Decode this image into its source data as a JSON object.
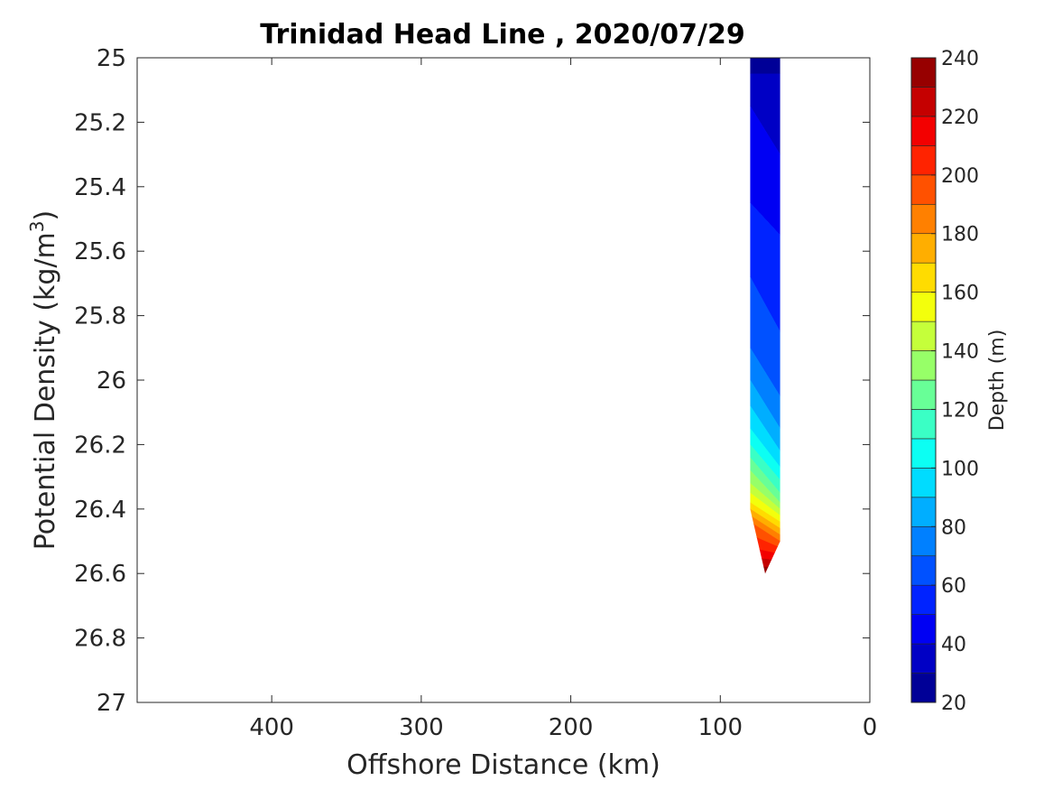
{
  "chart_data": {
    "type": "heatmap",
    "title": "Trinidad Head Line , 2020/07/29",
    "xlabel": "Offshore Distance (km)",
    "ylabel_main": "Potential Density (kg/m",
    "ylabel_sup": "3",
    "ylabel_close": ")",
    "colorbar_label": "Depth (m)",
    "xlim": [
      490,
      0
    ],
    "x_reversed": true,
    "x_ticks": [
      "400",
      "300",
      "200",
      "100",
      "0"
    ],
    "ylim": [
      25,
      27
    ],
    "y_reversed": true,
    "y_ticks": [
      "25",
      "25.2",
      "25.4",
      "25.6",
      "25.8",
      "26",
      "26.2",
      "26.4",
      "26.6",
      "26.8",
      "27"
    ],
    "colorbar_range": [
      20,
      240
    ],
    "colorbar_step": 10,
    "colorbar_ticks": [
      "20",
      "40",
      "60",
      "80",
      "100",
      "120",
      "140",
      "160",
      "180",
      "200",
      "220",
      "240"
    ],
    "colormap": "jet",
    "filled_region": {
      "x_range": [
        60,
        80
      ],
      "outline": [
        [
          80,
          25.0
        ],
        [
          60,
          25.0
        ],
        [
          60,
          26.5
        ],
        [
          70,
          26.6
        ],
        [
          80,
          26.4
        ]
      ]
    },
    "depth_contours": [
      {
        "depth": 30,
        "x": [
          60,
          80
        ],
        "y": [
          25.05,
          25.05
        ]
      },
      {
        "depth": 40,
        "x": [
          60,
          80
        ],
        "y": [
          25.3,
          25.15
        ]
      },
      {
        "depth": 50,
        "x": [
          60,
          80
        ],
        "y": [
          25.55,
          25.45
        ]
      },
      {
        "depth": 60,
        "x": [
          60,
          80
        ],
        "y": [
          25.85,
          25.68
        ]
      },
      {
        "depth": 70,
        "x": [
          60,
          80
        ],
        "y": [
          26.05,
          25.9
        ]
      },
      {
        "depth": 80,
        "x": [
          60,
          80
        ],
        "y": [
          26.15,
          26.0
        ]
      },
      {
        "depth": 90,
        "x": [
          60,
          80
        ],
        "y": [
          26.22,
          26.08
        ]
      },
      {
        "depth": 100,
        "x": [
          60,
          80
        ],
        "y": [
          26.27,
          26.15
        ]
      },
      {
        "depth": 110,
        "x": [
          60,
          80
        ],
        "y": [
          26.31,
          26.2
        ]
      },
      {
        "depth": 120,
        "x": [
          60,
          80
        ],
        "y": [
          26.35,
          26.24
        ]
      },
      {
        "depth": 130,
        "x": [
          60,
          80
        ],
        "y": [
          26.38,
          26.28
        ]
      },
      {
        "depth": 140,
        "x": [
          60,
          80
        ],
        "y": [
          26.4,
          26.32
        ]
      },
      {
        "depth": 150,
        "x": [
          60,
          80
        ],
        "y": [
          26.42,
          26.35
        ]
      },
      {
        "depth": 160,
        "x": [
          60,
          80
        ],
        "y": [
          26.44,
          26.38
        ]
      },
      {
        "depth": 170,
        "x": [
          60,
          80
        ],
        "y": [
          26.46,
          26.4
        ]
      },
      {
        "depth": 180,
        "x": [
          60,
          80
        ],
        "y": [
          26.48,
          26.42
        ]
      },
      {
        "depth": 190,
        "x": [
          60,
          80
        ],
        "y": [
          26.5,
          26.44
        ]
      },
      {
        "depth": 200,
        "x": [
          60,
          80
        ],
        "y": [
          26.52,
          26.48
        ]
      },
      {
        "depth": 210,
        "x": [
          60,
          80
        ],
        "y": [
          26.54,
          26.52
        ]
      },
      {
        "depth": 220,
        "x": [
          60,
          80
        ],
        "y": [
          26.56,
          26.55
        ]
      },
      {
        "depth": 230,
        "x": [
          60,
          80
        ],
        "y": [
          26.58,
          26.58
        ]
      },
      {
        "depth": 240,
        "x": [
          60,
          80
        ],
        "y": [
          26.6,
          26.6
        ]
      }
    ]
  }
}
